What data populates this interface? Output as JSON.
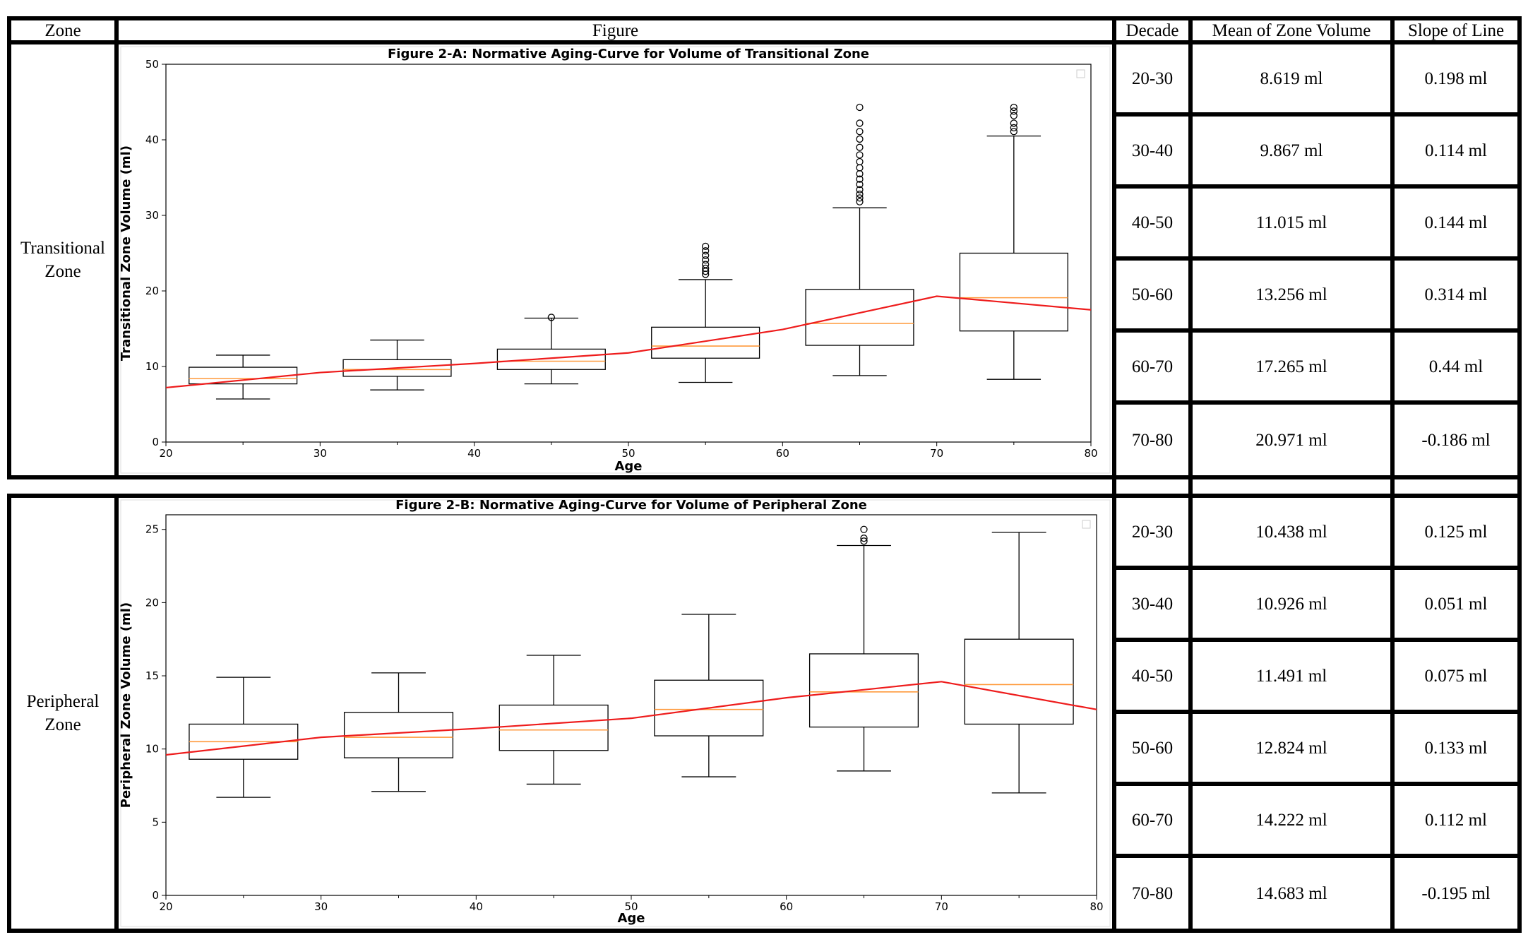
{
  "table": {
    "headers": {
      "zone": "Zone",
      "figure": "Figure",
      "decade": "Decade",
      "mean": "Mean of Zone Volume",
      "slope": "Slope of Line"
    },
    "sections": [
      {
        "zone": "Transitional\nZone",
        "rows": [
          {
            "decade": "20-30",
            "mean": "8.619  ml",
            "slope": "0.198 ml"
          },
          {
            "decade": "30-40",
            "mean": "9.867 ml",
            "slope": "0.114 ml"
          },
          {
            "decade": "40-50",
            "mean": "11.015 ml",
            "slope": "0.144 ml"
          },
          {
            "decade": "50-60",
            "mean": "13.256 ml",
            "slope": "0.314 ml"
          },
          {
            "decade": "60-70",
            "mean": "17.265 ml",
            "slope": "0.44 ml"
          },
          {
            "decade": "70-80",
            "mean": "20.971 ml",
            "slope": "-0.186 ml"
          }
        ]
      },
      {
        "zone": "Peripheral\nZone",
        "rows": [
          {
            "decade": "20-30",
            "mean": "10.438 ml",
            "slope": "0.125 ml"
          },
          {
            "decade": "30-40",
            "mean": "10.926 ml",
            "slope": "0.051 ml"
          },
          {
            "decade": "40-50",
            "mean": "11.491 ml",
            "slope": "0.075 ml"
          },
          {
            "decade": "50-60",
            "mean": "12.824 ml",
            "slope": "0.133 ml"
          },
          {
            "decade": "60-70",
            "mean": "14.222 ml",
            "slope": "0.112 ml"
          },
          {
            "decade": "70-80",
            "mean": "14.683 ml",
            "slope": "-0.195 ml"
          }
        ]
      }
    ]
  },
  "chart_data": [
    {
      "type": "box",
      "title": "Figure 2-A: Normative Aging-Curve for Volume of Transitional Zone",
      "xlabel": "Age",
      "ylabel": "Transitional Zone Volume (ml)",
      "xlim": [
        20,
        80
      ],
      "ylim": [
        0,
        50
      ],
      "xticks": [
        20,
        30,
        40,
        50,
        60,
        70,
        80
      ],
      "yticks": [
        0,
        10,
        20,
        30,
        40,
        50
      ],
      "boxes": [
        {
          "x": 25,
          "whislo": 5.7,
          "q1": 7.7,
          "med": 8.4,
          "q3": 9.9,
          "whishi": 11.5,
          "fliers": []
        },
        {
          "x": 35,
          "whislo": 6.9,
          "q1": 8.7,
          "med": 9.6,
          "q3": 10.9,
          "whishi": 13.5,
          "fliers": []
        },
        {
          "x": 45,
          "whislo": 7.7,
          "q1": 9.6,
          "med": 10.7,
          "q3": 12.3,
          "whishi": 16.4,
          "fliers": [
            16.5
          ]
        },
        {
          "x": 55,
          "whislo": 7.9,
          "q1": 11.1,
          "med": 12.7,
          "q3": 15.2,
          "whishi": 21.5,
          "fliers": [
            22.2,
            22.6,
            23.0,
            23.5,
            24.1,
            24.7,
            25.3,
            25.9
          ]
        },
        {
          "x": 65,
          "whislo": 8.8,
          "q1": 12.8,
          "med": 15.7,
          "q3": 20.2,
          "whishi": 31.0,
          "fliers": [
            31.8,
            32.3,
            32.8,
            33.4,
            34.1,
            34.8,
            35.5,
            36.3,
            37.1,
            38.0,
            39.0,
            40.1,
            41.1,
            42.2,
            44.3
          ]
        },
        {
          "x": 75,
          "whislo": 8.3,
          "q1": 14.7,
          "med": 19.1,
          "q3": 25.0,
          "whishi": 40.5,
          "fliers": [
            41.1,
            41.6,
            42.2,
            43.2,
            43.8,
            44.3
          ]
        }
      ],
      "trend_line": {
        "x": [
          20,
          30,
          40,
          50,
          60,
          70,
          80
        ],
        "y": [
          7.2,
          9.2,
          10.4,
          11.8,
          14.9,
          19.3,
          17.5
        ]
      }
    },
    {
      "type": "box",
      "title": "Figure 2-B: Normative Aging-Curve for Volume of Peripheral Zone",
      "xlabel": "Age",
      "ylabel": "Peripheral Zone Volume (ml)",
      "xlim": [
        20,
        80
      ],
      "ylim": [
        0,
        26
      ],
      "xticks": [
        20,
        30,
        40,
        50,
        60,
        70,
        80
      ],
      "yticks": [
        0,
        5,
        10,
        15,
        20,
        25
      ],
      "boxes": [
        {
          "x": 25,
          "whislo": 6.7,
          "q1": 9.3,
          "med": 10.5,
          "q3": 11.7,
          "whishi": 14.9,
          "fliers": []
        },
        {
          "x": 35,
          "whislo": 7.1,
          "q1": 9.4,
          "med": 10.8,
          "q3": 12.5,
          "whishi": 15.2,
          "fliers": []
        },
        {
          "x": 45,
          "whislo": 7.6,
          "q1": 9.9,
          "med": 11.3,
          "q3": 13.0,
          "whishi": 16.4,
          "fliers": []
        },
        {
          "x": 55,
          "whislo": 8.1,
          "q1": 10.9,
          "med": 12.7,
          "q3": 14.7,
          "whishi": 19.2,
          "fliers": []
        },
        {
          "x": 65,
          "whislo": 8.5,
          "q1": 11.5,
          "med": 13.9,
          "q3": 16.5,
          "whishi": 23.9,
          "fliers": [
            24.2,
            24.4,
            25.0
          ]
        },
        {
          "x": 75,
          "whislo": 7.0,
          "q1": 11.7,
          "med": 14.4,
          "q3": 17.5,
          "whishi": 24.8,
          "fliers": []
        }
      ],
      "trend_line": {
        "x": [
          20,
          30,
          40,
          50,
          60,
          70,
          80
        ],
        "y": [
          9.6,
          10.8,
          11.4,
          12.1,
          13.5,
          14.6,
          12.7
        ]
      }
    }
  ]
}
